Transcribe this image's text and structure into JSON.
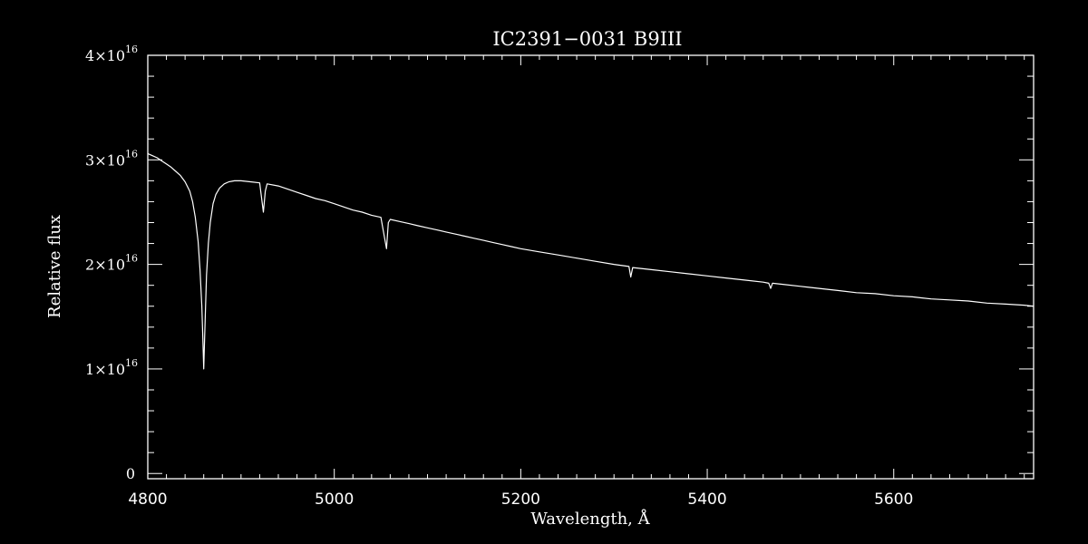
{
  "chart_data": {
    "type": "line",
    "title": "IC2391−0031   B9III",
    "xlabel": "Wavelength, Å",
    "ylabel": "Relative flux",
    "xlim": [
      4800,
      5750
    ],
    "ylim": [
      -500000000000000.0,
      4e+16
    ],
    "x_ticks": [
      {
        "value": 4800,
        "label": "4800"
      },
      {
        "value": 5000,
        "label": "5000"
      },
      {
        "value": 5200,
        "label": "5200"
      },
      {
        "value": 5400,
        "label": "5400"
      },
      {
        "value": 5600,
        "label": "5600"
      }
    ],
    "y_ticks": [
      {
        "value": 0,
        "label": "0"
      },
      {
        "value": 1e+16,
        "label": "1×10",
        "exp": "16"
      },
      {
        "value": 2e+16,
        "label": "2×10",
        "exp": "16"
      },
      {
        "value": 3e+16,
        "label": "3×10",
        "exp": "16"
      },
      {
        "value": 4e+16,
        "label": "4×10",
        "exp": "16"
      }
    ],
    "grid": false,
    "background": "#000000",
    "line_color": "#ffffff",
    "series": [
      {
        "x": [
          4800,
          4805,
          4810,
          4815,
          4820,
          4825,
          4830,
          4835,
          4840,
          4845,
          4848,
          4851,
          4854,
          4856,
          4858,
          4859,
          4860,
          4861,
          4862,
          4863,
          4865,
          4867,
          4870,
          4873,
          4877,
          4882,
          4887,
          4893,
          4900,
          4910,
          4920,
          4924,
          4926,
          4928,
          4940,
          4950,
          4960,
          4970,
          4980,
          4990,
          5000,
          5010,
          5020,
          5030,
          5040,
          5050,
          5056,
          5058,
          5060,
          5070,
          5080,
          5090,
          5100,
          5110,
          5120,
          5130,
          5140,
          5150,
          5160,
          5170,
          5180,
          5190,
          5200,
          5220,
          5240,
          5260,
          5280,
          5300,
          5316,
          5318,
          5320,
          5340,
          5360,
          5380,
          5400,
          5420,
          5440,
          5460,
          5466,
          5468,
          5470,
          5480,
          5500,
          5520,
          5540,
          5560,
          5580,
          5600,
          5620,
          5640,
          5660,
          5680,
          5700,
          5720,
          5740,
          5750
        ],
        "y": [
          3.06e+16,
          3.04e+16,
          3.02e+16,
          2.99e+16,
          2.96e+16,
          2.93e+16,
          2.89e+16,
          2.85e+16,
          2.79e+16,
          2.7e+16,
          2.6e+16,
          2.45e+16,
          2.22e+16,
          1.95e+16,
          1.6e+16,
          1.3e+16,
          1e+16,
          1.3e+16,
          1.62e+16,
          1.9e+16,
          2.2e+16,
          2.4e+16,
          2.58e+16,
          2.67e+16,
          2.73e+16,
          2.77e+16,
          2.79e+16,
          2.8e+16,
          2.8e+16,
          2.79e+16,
          2.78e+16,
          2.5e+16,
          2.7e+16,
          2.77e+16,
          2.75e+16,
          2.72e+16,
          2.69e+16,
          2.66e+16,
          2.63e+16,
          2.61e+16,
          2.58e+16,
          2.55e+16,
          2.52e+16,
          2.5e+16,
          2.47e+16,
          2.45e+16,
          2.15e+16,
          2.4e+16,
          2.43e+16,
          2.41e+16,
          2.39e+16,
          2.37e+16,
          2.35e+16,
          2.33e+16,
          2.31e+16,
          2.29e+16,
          2.27e+16,
          2.25e+16,
          2.23e+16,
          2.21e+16,
          2.19e+16,
          2.17e+16,
          2.15e+16,
          2.12e+16,
          2.09e+16,
          2.06e+16,
          2.03e+16,
          2e+16,
          1.98e+16,
          1.88e+16,
          1.97e+16,
          1.95e+16,
          1.93e+16,
          1.91e+16,
          1.89e+16,
          1.87e+16,
          1.85e+16,
          1.83e+16,
          1.82e+16,
          1.77e+16,
          1.82e+16,
          1.81e+16,
          1.79e+16,
          1.77e+16,
          1.75e+16,
          1.73e+16,
          1.72e+16,
          1.7e+16,
          1.69e+16,
          1.67e+16,
          1.66e+16,
          1.65e+16,
          1.63e+16,
          1.62e+16,
          1.61e+16,
          1.6e+16
        ]
      }
    ]
  }
}
